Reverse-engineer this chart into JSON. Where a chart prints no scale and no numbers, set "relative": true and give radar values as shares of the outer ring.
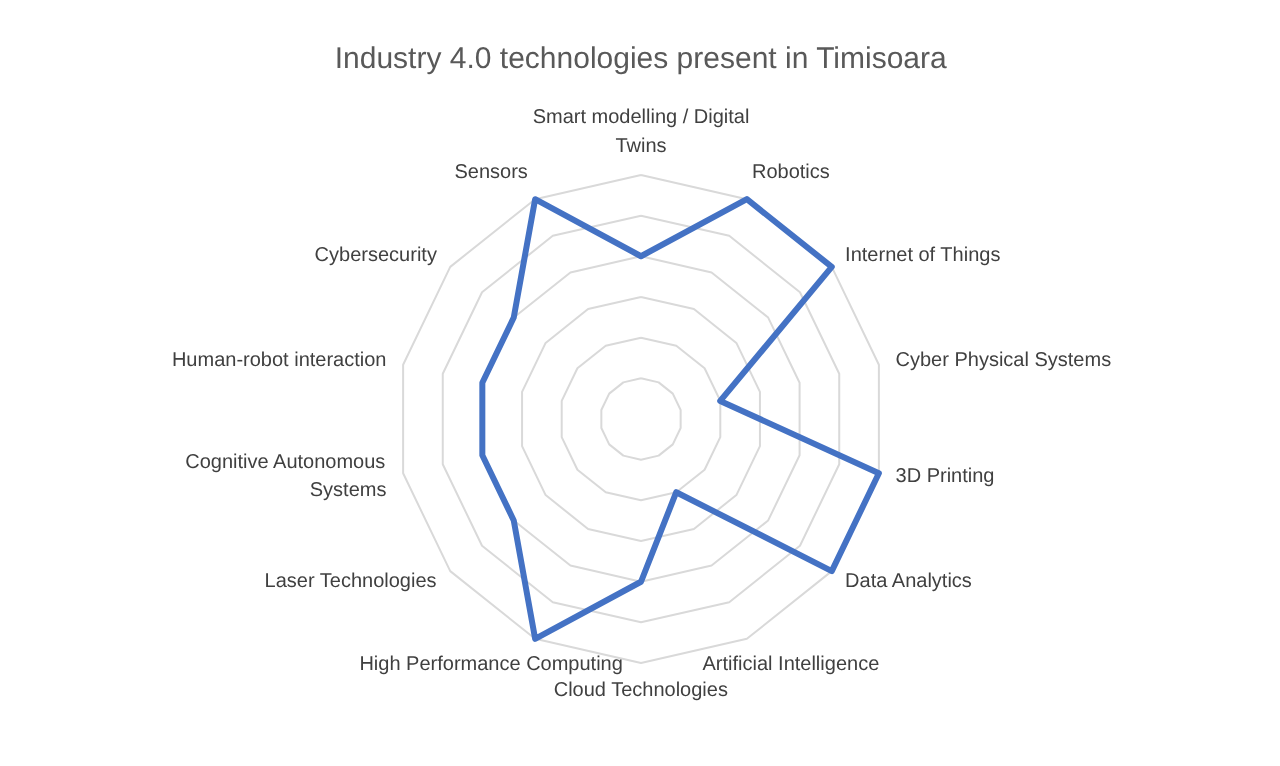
{
  "chart_data": {
    "type": "radar",
    "title": "Industry 4.0 technologies present in Timisoara",
    "relative": true,
    "grid": true,
    "categories": [
      "Smart modelling / Digital Twins",
      "Robotics",
      "Internet of Things",
      "Cyber Physical Systems",
      "3D Printing",
      "Data Analytics",
      "Artificial Intelligence",
      "Cloud Technologies",
      "High Performance Computing",
      "Laser Technologies",
      "Cognitive Autonomous Systems",
      "Human-robot interaction",
      "Cybersecurity",
      "Sensors"
    ],
    "series": [
      {
        "color": "#4472c4",
        "values": [
          0.667,
          1,
          1,
          0.333,
          1,
          1,
          0.333,
          0.667,
          1,
          0.667,
          0.667,
          0.667,
          0.667,
          1
        ]
      }
    ]
  }
}
